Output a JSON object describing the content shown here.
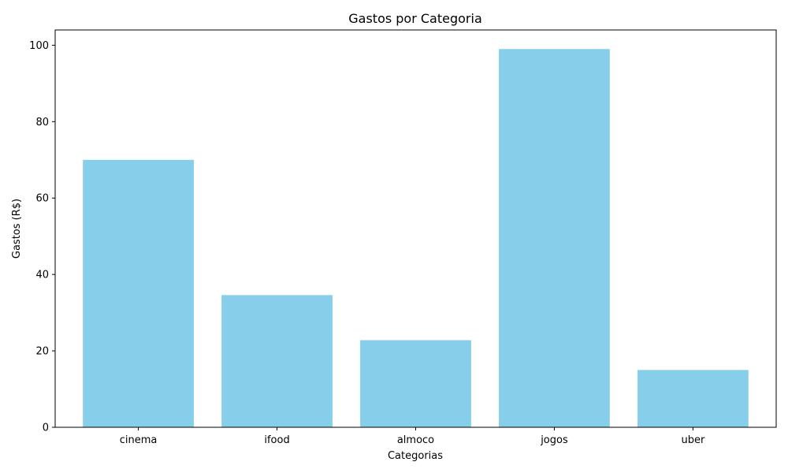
{
  "chart_data": {
    "type": "bar",
    "title": "Gastos por Categoria",
    "xlabel": "Categorias",
    "ylabel": "Gastos (R$)",
    "categories": [
      "cinema",
      "ifood",
      "almoco",
      "jogos",
      "uber"
    ],
    "values": [
      70,
      34.6,
      22.8,
      99,
      15
    ],
    "ylim": [
      0,
      104
    ],
    "yticks": [
      0,
      20,
      40,
      60,
      80,
      100
    ],
    "bar_color": "#87ceeb",
    "grid": false,
    "legend": "none"
  }
}
